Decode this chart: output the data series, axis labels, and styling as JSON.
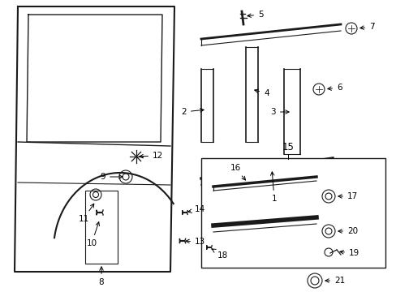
{
  "background_color": "#ffffff",
  "figsize": [
    4.89,
    3.6
  ],
  "dpi": 100,
  "line_color": "#1a1a1a",
  "text_color": "#000000",
  "font_size": 7.5
}
